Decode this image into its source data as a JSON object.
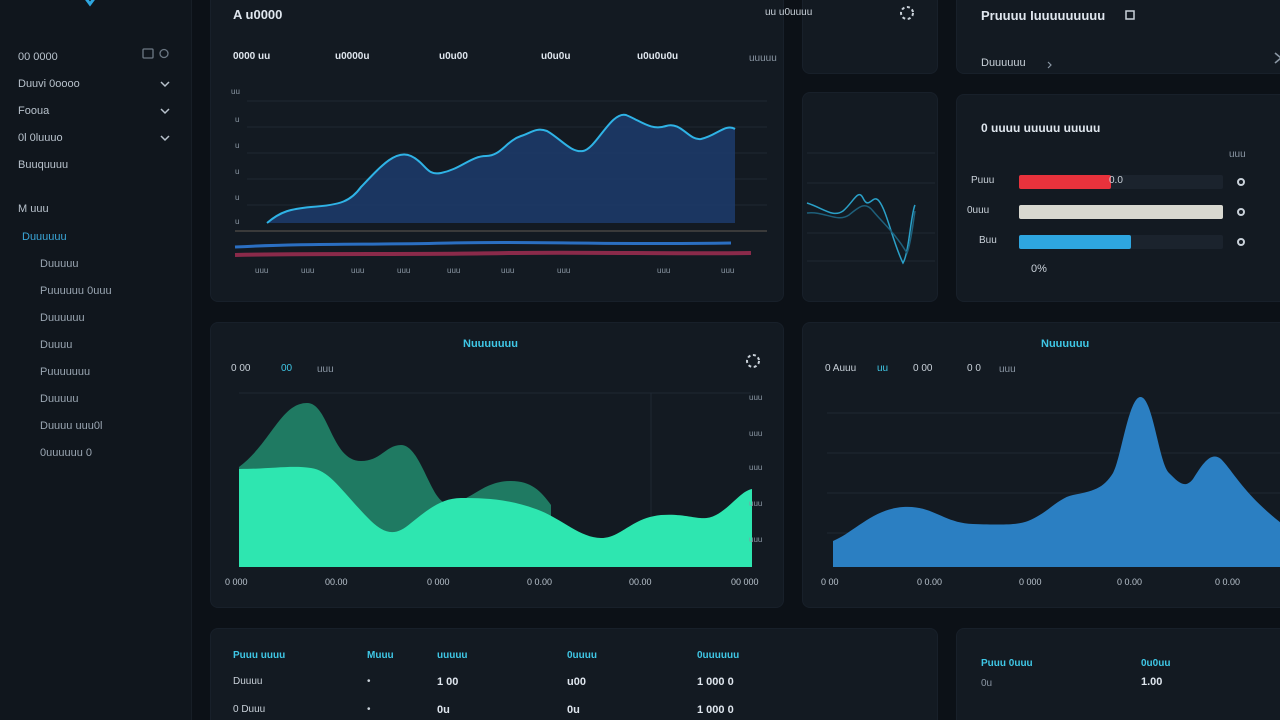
{
  "sidebar": {
    "items": [
      {
        "label": "00 0000"
      },
      {
        "label": "Duuvi 0oooo"
      },
      {
        "label": "Fooua"
      },
      {
        "label": "0l 0luuuo"
      },
      {
        "label": "Buuquuuu"
      }
    ],
    "section_label": "M uuu",
    "sub_items": [
      {
        "label": "Duuuuuu"
      },
      {
        "label": "Duuuuu"
      },
      {
        "label": "Puuuuuu 0uuu"
      },
      {
        "label": "Duuuuuu"
      },
      {
        "label": "Duuuu"
      },
      {
        "label": "Puuuuuuu"
      },
      {
        "label": "Duuuuu"
      },
      {
        "label": "Duuuu uuu0l"
      },
      {
        "label": "0uuuuuu 0"
      }
    ]
  },
  "top_chart": {
    "title": "A u0000",
    "tabs": [
      "0000 uu",
      "u0000u",
      "u0u00",
      "u0u0u",
      "u0u0u0u",
      "uuuuu"
    ],
    "y_ticks": [
      "uu",
      "u",
      "u",
      "u",
      "u",
      "u"
    ],
    "x_ticks": [
      "uuu",
      "uuu",
      "uuu",
      "uuu",
      "uuu",
      "uuu",
      "uuu",
      "uuu",
      "uuu"
    ]
  },
  "mini_panel": {
    "label": "uu u0uuuu"
  },
  "progress_panel": {
    "title": "Pruuuu Iuuuuuuuuu",
    "subtitle": "Duuuuuu",
    "section_title": "0 uuuu uuuuu uuuuu",
    "column_label": "uuu",
    "rows": [
      {
        "label": "Puuu",
        "value_label": "0.0",
        "end_label": "0",
        "progress": 0.45,
        "color": "#e8323c"
      },
      {
        "label": "0uuu",
        "value_label": "",
        "end_label": "0",
        "progress": 1.0,
        "color": "#d8d8d0"
      },
      {
        "label": "Buu",
        "value_label": "",
        "end_label": "0",
        "progress": 0.55,
        "color": "#2ea6e0"
      }
    ],
    "footer": "0%"
  },
  "area_chart_left": {
    "title": "Nuuuuuuu",
    "legend": [
      "0 00",
      "00",
      "uuu"
    ],
    "y_ticks": [
      "uuu",
      "uuu",
      "uuu",
      "uuu",
      "uuu"
    ],
    "x_ticks": [
      "0 000",
      "00.00",
      "0 000",
      "0 0.00",
      "00.00",
      "00 000"
    ]
  },
  "area_chart_right": {
    "title": "Nuuuuuu",
    "legend": [
      "0 Auuu",
      "uu",
      "0 00",
      "0 0",
      "uuu"
    ],
    "x_ticks": [
      "0 00",
      "0 0.00",
      "0 000",
      "0 0.00",
      "0 0.00"
    ]
  },
  "table": {
    "headers": [
      "Puuu uuuu",
      "Muuu",
      "uuuuu",
      "0uuuu",
      "0uuuuuu"
    ],
    "rows": [
      [
        "Duuuu",
        "•",
        "1 00",
        "u00",
        "1 000 0"
      ],
      [
        "0 Duuu",
        "•",
        "0u",
        "0u",
        "1 000 0"
      ]
    ]
  },
  "mini_table": {
    "headers": [
      "Puuu 0uuu",
      "0u0uu"
    ],
    "rows": [
      [
        "0u",
        "1.00"
      ]
    ]
  },
  "colors": {
    "accent": "#3fc7e6",
    "teal": "#2ee6b0",
    "blue_area": "#2b7fc2"
  }
}
